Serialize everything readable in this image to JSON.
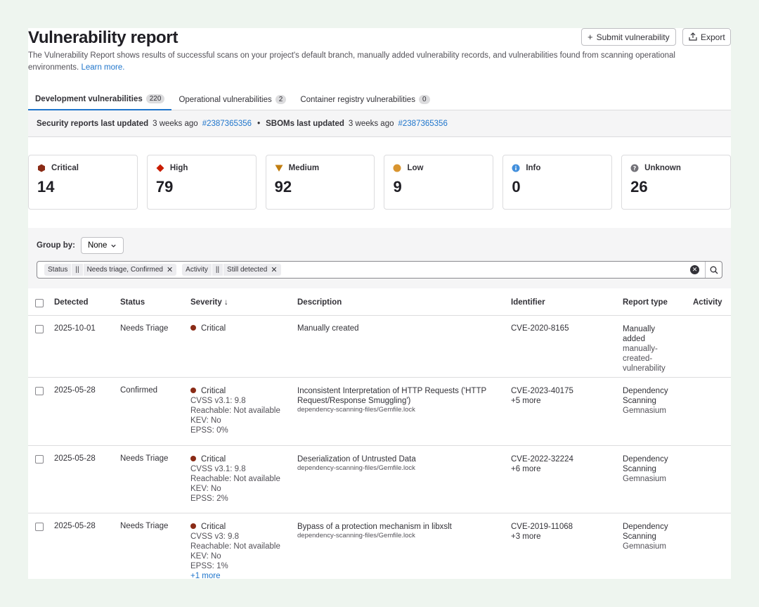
{
  "header": {
    "title": "Vulnerability report",
    "submit_label": "Submit vulnerability",
    "export_label": "Export",
    "intro": "The Vulnerability Report shows results of successful scans on your project's default branch, manually added vulnerability records, and vulnerabilities found from scanning operational environments.",
    "learn_more": "Learn more."
  },
  "tabs": [
    {
      "label": "Development vulnerabilities",
      "count": "220"
    },
    {
      "label": "Operational vulnerabilities",
      "count": "2"
    },
    {
      "label": "Container registry vulnerabilities",
      "count": "0"
    }
  ],
  "updated": {
    "security_label": "Security reports last updated",
    "security_time": "3 weeks ago",
    "security_pipeline": "#2387365356",
    "bullet": "•",
    "sbom_label": "SBOMs last updated",
    "sbom_time": "3 weeks ago",
    "sbom_pipeline": "#2387365356"
  },
  "severity_cards": [
    {
      "label": "Critical",
      "count": "14",
      "color": "#8a2b16",
      "icon": "critical-hexagon-icon"
    },
    {
      "label": "High",
      "count": "79",
      "color": "#c91c00",
      "icon": "high-diamond-icon"
    },
    {
      "label": "Medium",
      "count": "92",
      "color": "#c17d10",
      "icon": "medium-triangle-icon"
    },
    {
      "label": "Low",
      "count": "9",
      "color": "#d99530",
      "icon": "low-circle-icon"
    },
    {
      "label": "Info",
      "count": "0",
      "color": "#428fdc",
      "icon": "info-circle-icon"
    },
    {
      "label": "Unknown",
      "count": "26",
      "color": "#737278",
      "icon": "unknown-question-icon"
    }
  ],
  "filters": {
    "group_by_label": "Group by:",
    "group_by_value": "None",
    "tokens": {
      "status_key": "Status",
      "status_op": "||",
      "status_value": "Needs triage, Confirmed",
      "activity_key": "Activity",
      "activity_op": "||",
      "activity_value": "Still detected"
    }
  },
  "table": {
    "columns": {
      "detected": "Detected",
      "status": "Status",
      "severity": "Severity",
      "severity_sort": "↓",
      "description": "Description",
      "identifier": "Identifier",
      "report_type": "Report type",
      "activity": "Activity"
    },
    "rows": [
      {
        "detected": "2025-10-01",
        "status": "Needs Triage",
        "severity": "Critical",
        "description": "Manually created",
        "identifier": "CVE-2020-8165",
        "report_lines": [
          "Manually",
          "added",
          "manually-",
          "created-",
          "vulnerability"
        ]
      },
      {
        "detected": "2025-05-28",
        "status": "Confirmed",
        "severity": "Critical",
        "cvss": "CVSS v3.1: 9.8",
        "reachable": "Reachable: Not available",
        "kev": "KEV: No",
        "epss": "EPSS: 0%",
        "description_l1": "Inconsistent Interpretation of HTTP Requests ('HTTP",
        "description_l2": "Request/Response Smuggling')",
        "file": "dependency-scanning-files/Gemfile.lock",
        "identifier": "CVE-2023-40175",
        "more": "+5 more",
        "report_l1": "Dependency",
        "report_l2": "Scanning",
        "scanner": "Gemnasium"
      },
      {
        "detected": "2025-05-28",
        "status": "Needs Triage",
        "severity": "Critical",
        "cvss": "CVSS v3.1: 9.8",
        "reachable": "Reachable: Not available",
        "kev": "KEV: No",
        "epss": "EPSS: 2%",
        "description_l1": "Deserialization of Untrusted Data",
        "file": "dependency-scanning-files/Gemfile.lock",
        "identifier": "CVE-2022-32224",
        "more": "+6 more",
        "report_l1": "Dependency",
        "report_l2": "Scanning",
        "scanner": "Gemnasium"
      },
      {
        "detected": "2025-05-28",
        "status": "Needs Triage",
        "severity": "Critical",
        "cvss": "CVSS v3: 9.8",
        "reachable": "Reachable: Not available",
        "kev": "KEV: No",
        "epss": "EPSS: 1%",
        "extra": "+1 more",
        "description_l1": "Bypass of a protection mechanism in libxslt",
        "file": "dependency-scanning-files/Gemfile.lock",
        "identifier": "CVE-2019-11068",
        "more": "+3 more",
        "report_l1": "Dependency",
        "report_l2": "Scanning",
        "scanner": "Gemnasium"
      }
    ]
  }
}
